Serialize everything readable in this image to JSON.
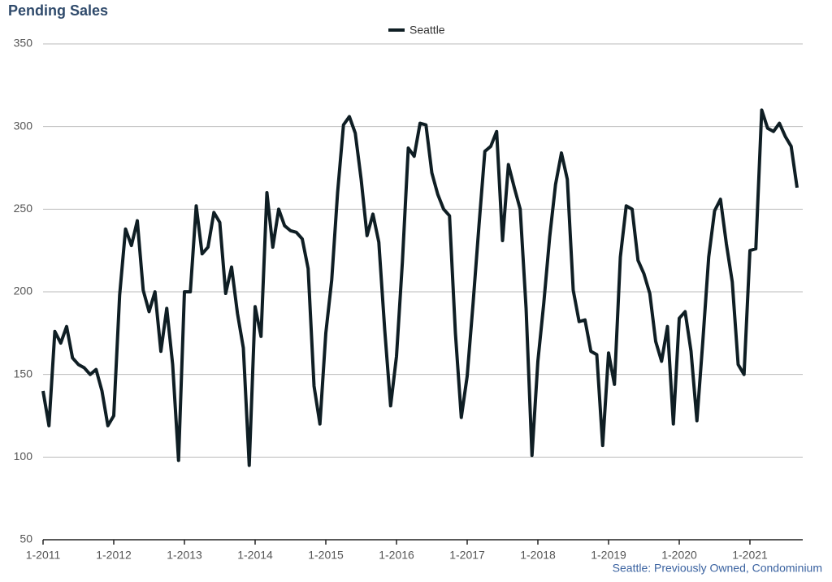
{
  "chart_data": {
    "type": "line",
    "title": "Pending Sales",
    "subtitle": "Seattle: Previously Owned, Condominium",
    "categories": [
      "1-2011",
      null,
      null,
      null,
      null,
      null,
      null,
      null,
      null,
      null,
      null,
      null,
      "1-2012",
      null,
      null,
      null,
      null,
      null,
      null,
      null,
      null,
      null,
      null,
      null,
      "1-2013",
      null,
      null,
      null,
      null,
      null,
      null,
      null,
      null,
      null,
      null,
      null,
      "1-2014",
      null,
      null,
      null,
      null,
      null,
      null,
      null,
      null,
      null,
      null,
      null,
      "1-2015",
      null,
      null,
      null,
      null,
      null,
      null,
      null,
      null,
      null,
      null,
      null,
      "1-2016",
      null,
      null,
      null,
      null,
      null,
      null,
      null,
      null,
      null,
      null,
      null,
      "1-2017",
      null,
      null,
      null,
      null,
      null,
      null,
      null,
      null,
      null,
      null,
      null,
      "1-2018",
      null,
      null,
      null,
      null,
      null,
      null,
      null,
      null,
      null,
      null,
      null,
      "1-2019",
      null,
      null,
      null,
      null,
      null,
      null,
      null,
      null,
      null,
      null,
      null,
      "1-2020",
      null,
      null,
      null,
      null,
      null,
      null,
      null,
      null,
      null,
      null,
      null,
      "1-2021",
      null,
      null,
      null,
      null,
      null,
      null,
      null,
      null
    ],
    "series": [
      {
        "name": "Seattle",
        "color": "#0f1e24",
        "values": [
          140,
          119,
          176,
          169,
          179,
          160,
          156,
          154,
          150,
          153,
          140,
          119,
          125,
          198,
          238,
          228,
          243,
          201,
          188,
          200,
          164,
          190,
          156,
          98,
          200,
          200,
          252,
          223,
          227,
          248,
          242,
          199,
          215,
          187,
          166,
          95,
          191,
          173,
          260,
          227,
          250,
          240,
          237,
          236,
          232,
          214,
          143,
          120,
          175,
          207,
          260,
          301,
          306,
          296,
          268,
          234,
          247,
          230,
          177,
          131,
          161,
          218,
          287,
          282,
          302,
          301,
          272,
          259,
          250,
          246,
          175,
          124,
          149,
          193,
          240,
          285,
          288,
          297,
          231,
          277,
          263,
          250,
          190,
          101,
          158,
          193,
          233,
          265,
          284,
          268,
          201,
          182,
          183,
          164,
          162,
          107,
          163,
          144,
          221,
          252,
          250,
          219,
          211,
          199,
          170,
          158,
          179,
          120,
          184,
          188,
          164,
          122,
          170,
          221,
          249,
          256,
          229,
          206,
          156,
          150,
          225,
          226,
          310,
          299,
          297,
          302,
          294,
          288,
          263
        ]
      }
    ],
    "ylim": [
      50,
      350
    ],
    "yticks": [
      50,
      100,
      150,
      200,
      250,
      300,
      350
    ],
    "grid": true
  }
}
